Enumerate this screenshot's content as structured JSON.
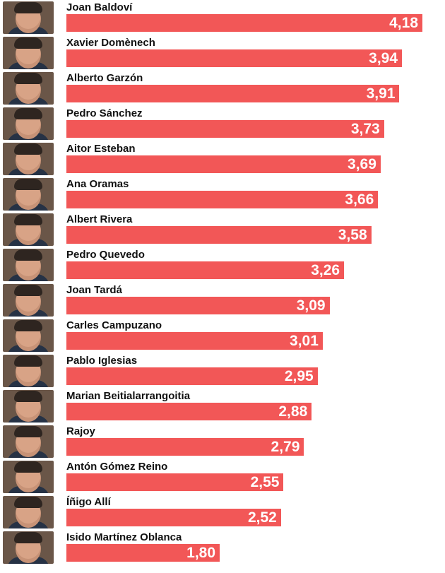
{
  "chart_data": {
    "type": "bar",
    "orientation": "horizontal",
    "categories": [
      "Joan Baldoví",
      "Xavier Domènech",
      "Alberto Garzón",
      "Pedro Sánchez",
      "Aitor Esteban",
      "Ana Oramas",
      "Albert Rivera",
      "Pedro Quevedo",
      "Joan Tardá",
      "Carles Campuzano",
      "Pablo Iglesias",
      "Marian Beitialarrangoitia",
      "Rajoy",
      "Antón Gómez Reino",
      "Íñigo Allí",
      "Isido Martínez Oblanca"
    ],
    "values": [
      4.18,
      3.94,
      3.91,
      3.73,
      3.69,
      3.66,
      3.58,
      3.26,
      3.09,
      3.01,
      2.95,
      2.88,
      2.79,
      2.55,
      2.52,
      1.8
    ],
    "value_labels": [
      "4,18",
      "3,94",
      "3,91",
      "3,73",
      "3,69",
      "3,66",
      "3,58",
      "3,26",
      "3,09",
      "3,01",
      "2,95",
      "2,88",
      "2,79",
      "2,55",
      "2,52",
      "1,80"
    ],
    "xlim": [
      0,
      4.18
    ],
    "grid": false,
    "legend": "none",
    "bar_color": "#f25757",
    "label_color": "#ffffff",
    "name_color": "#111111",
    "avatar_icon": "person-photo"
  }
}
